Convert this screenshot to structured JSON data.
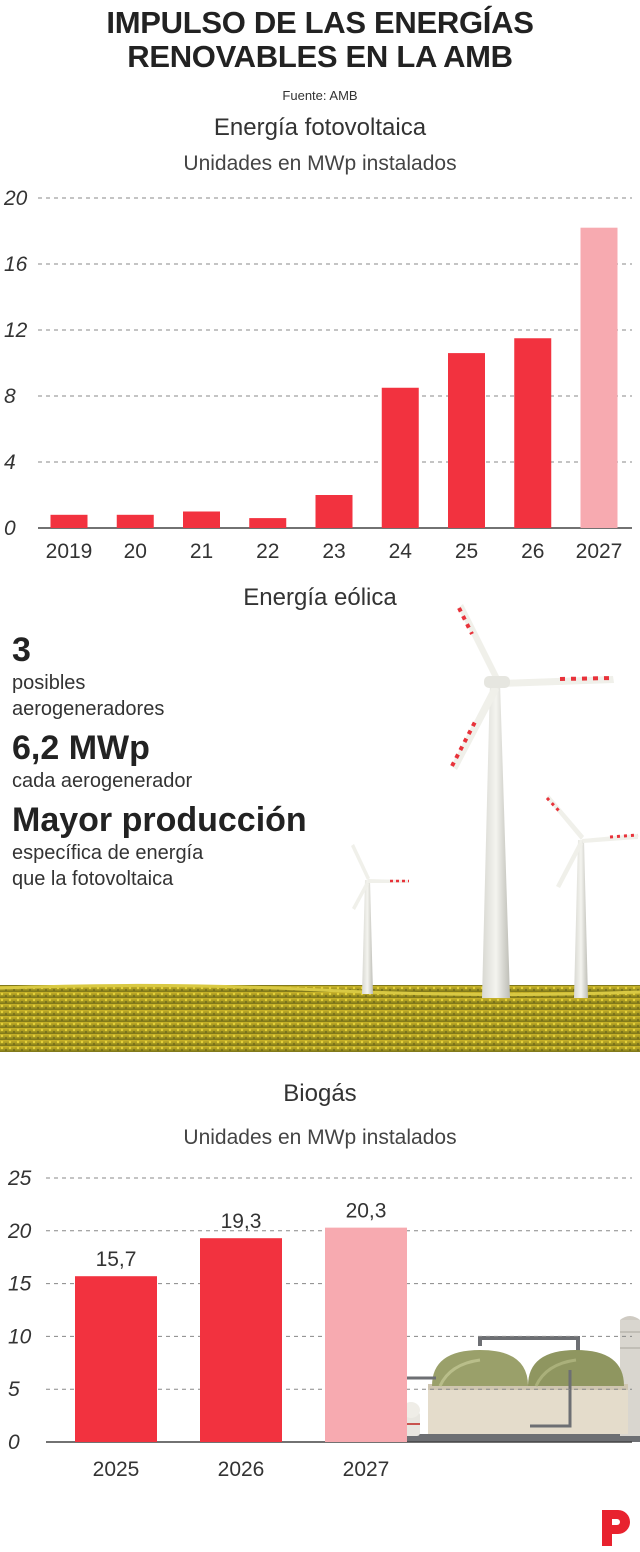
{
  "header": {
    "title_line1": "IMPULSO DE LAS ENERGÍAS",
    "title_line2": "RENOVABLES EN LA AMB",
    "source": "Fuente: AMB"
  },
  "eolica": {
    "title": "Energía eólica",
    "stats": [
      {
        "value": "3",
        "label_line1": "posibles",
        "label_line2": "aerogeneradores"
      },
      {
        "value": "6,2 MWp",
        "label_line1": "cada aerogenerador",
        "label_line2": ""
      },
      {
        "value": "Mayor producción",
        "label_line1": "específica de energía",
        "label_line2": "que la fotovoltaica"
      }
    ]
  },
  "colors": {
    "actual": "#f2323f",
    "projected": "#f7aab0",
    "grid": "#888888",
    "text": "#333333"
  },
  "chart_data": [
    {
      "type": "bar",
      "title": "Energía fotovoltaica",
      "subtitle": "Unidades en MWp instalados",
      "categories": [
        "2019",
        "20",
        "21",
        "22",
        "23",
        "24",
        "25",
        "26",
        "2027"
      ],
      "values": [
        0.8,
        0.8,
        1.0,
        0.6,
        2.0,
        8.5,
        10.6,
        11.5,
        18.2
      ],
      "projected": [
        false,
        false,
        false,
        false,
        false,
        false,
        false,
        false,
        true
      ],
      "yticks": [
        0,
        4,
        8,
        12,
        16,
        20
      ],
      "ylim": [
        0,
        20
      ],
      "grid": true
    },
    {
      "type": "bar",
      "title": "Biogás",
      "subtitle": "Unidades en MWp instalados",
      "categories": [
        "2025",
        "2026",
        "2027"
      ],
      "values": [
        15.7,
        19.3,
        20.3
      ],
      "data_labels": [
        "15,7",
        "19,3",
        "20,3"
      ],
      "projected": [
        false,
        false,
        true
      ],
      "yticks": [
        0,
        5,
        10,
        15,
        20,
        25
      ],
      "ylim": [
        0,
        25
      ],
      "grid": true
    }
  ]
}
